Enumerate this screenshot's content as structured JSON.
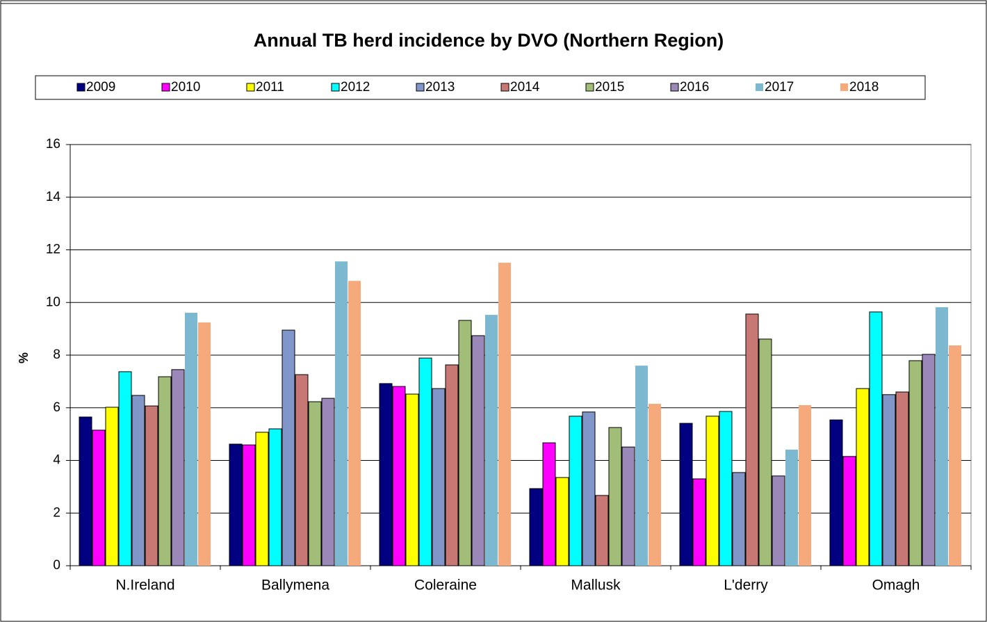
{
  "chart_data": {
    "type": "bar",
    "title": "Annual TB herd incidence by DVO (Northern Region)",
    "y_label": "%",
    "categories": [
      "N.Ireland",
      "Ballymena",
      "Coleraine",
      "Mallusk",
      "L'derry",
      "Omagh"
    ],
    "series": [
      {
        "name": "2009",
        "color": "#000080",
        "values": [
          5.65,
          4.62,
          6.92,
          2.93,
          5.41,
          5.54
        ]
      },
      {
        "name": "2010",
        "color": "#ff00ff",
        "values": [
          5.15,
          4.59,
          6.81,
          4.67,
          3.3,
          4.15
        ]
      },
      {
        "name": "2011",
        "color": "#ffff00",
        "values": [
          6.02,
          5.07,
          6.52,
          3.35,
          5.68,
          6.73
        ]
      },
      {
        "name": "2012",
        "color": "#00ffff",
        "values": [
          7.37,
          5.2,
          7.89,
          5.68,
          5.86,
          9.64
        ]
      },
      {
        "name": "2013",
        "color": "#8096c8",
        "values": [
          6.47,
          8.95,
          6.73,
          5.84,
          3.54,
          6.5
        ]
      },
      {
        "name": "2014",
        "color": "#c87874",
        "values": [
          6.07,
          7.26,
          7.63,
          2.67,
          9.56,
          6.6
        ]
      },
      {
        "name": "2015",
        "color": "#a2bd78",
        "values": [
          7.18,
          6.23,
          9.32,
          5.25,
          8.61,
          7.79
        ]
      },
      {
        "name": "2016",
        "color": "#9a88b8",
        "values": [
          7.45,
          6.36,
          8.74,
          4.51,
          3.41,
          8.03
        ]
      },
      {
        "name": "2017",
        "color": "#7cb8d0",
        "values": [
          9.61,
          11.56,
          9.53,
          7.6,
          4.41,
          9.82
        ]
      },
      {
        "name": "2018",
        "color": "#f6aa7c",
        "values": [
          9.24,
          10.82,
          11.51,
          6.15,
          6.1,
          8.37
        ]
      }
    ],
    "ylim": [
      0,
      16
    ],
    "yticks": [
      0,
      2,
      4,
      6,
      8,
      10,
      12,
      14,
      16
    ],
    "grid": true,
    "legend": "top"
  }
}
